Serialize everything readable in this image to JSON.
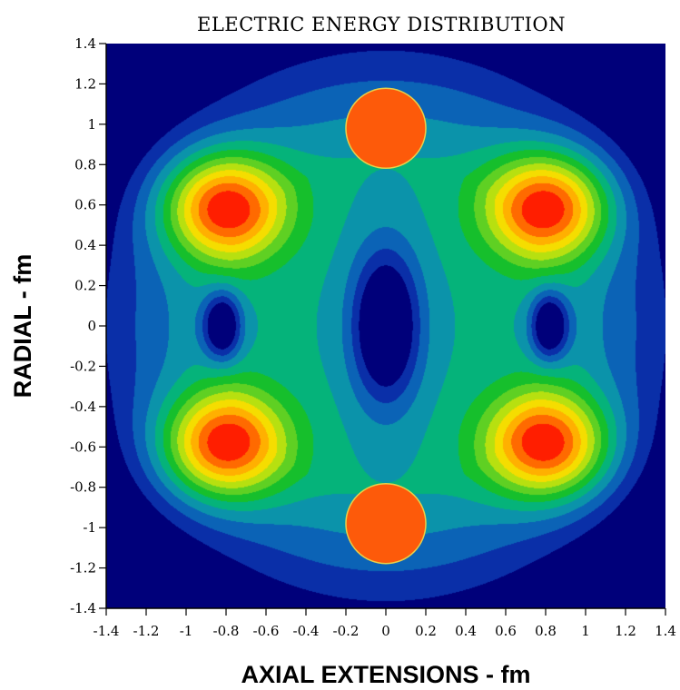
{
  "chart_data": {
    "type": "heatmap",
    "title": "ELECTRIC ENERGY DISTRIBUTION",
    "xlabel": "AXIAL EXTENSIONS - fm",
    "ylabel": "RADIAL - fm",
    "xlim": [
      -1.4,
      1.4
    ],
    "ylim": [
      -1.4,
      1.4
    ],
    "x_ticks": [
      -1.4,
      -1.2,
      -1,
      -0.8,
      -0.6,
      -0.4,
      -0.2,
      0,
      0.2,
      0.4,
      0.6,
      0.8,
      1,
      1.2,
      1.4
    ],
    "x_tick_labels": [
      "-1.4",
      "-1.2",
      "-1",
      "-0.8",
      "-0.6",
      "-0.4",
      "-0.2",
      "0",
      "0.2",
      "0.4",
      "0.6",
      "0.8",
      "1",
      "1.2",
      "1.4"
    ],
    "y_ticks": [
      1.4,
      1.2,
      1,
      0.8,
      0.6,
      0.4,
      0.2,
      0,
      -0.2,
      -0.4,
      -0.6,
      -0.8,
      -1,
      -1.2,
      -1.4
    ],
    "y_tick_labels": [
      "1.4",
      "1.2",
      "1",
      "0.8",
      "0.6",
      "0.4",
      "0.2",
      "0",
      "-0.2",
      "-0.4",
      "-0.6",
      "-0.8",
      "-1",
      "-1.2",
      "-1.4"
    ],
    "grid": false,
    "legend": "none",
    "color_levels": [
      "#00007a",
      "#0a2fa8",
      "#0b63b6",
      "#0b93aa",
      "#05b37a",
      "#16bf2c",
      "#5fd023",
      "#b7e010",
      "#f5dd00",
      "#ffb000",
      "#ff6a00",
      "#ff1e00"
    ],
    "charges": [
      {
        "x": 0,
        "y": 0.98,
        "radius": 0.2,
        "color": "#fd5a0a"
      },
      {
        "x": 0,
        "y": -0.98,
        "radius": 0.2,
        "color": "#fd5a0a"
      }
    ],
    "energy_peaks": [
      {
        "x": -0.81,
        "y": 0.59,
        "kind": "maximum"
      },
      {
        "x": 0.81,
        "y": 0.59,
        "kind": "maximum"
      },
      {
        "x": -0.81,
        "y": -0.59,
        "kind": "maximum"
      },
      {
        "x": 0.81,
        "y": -0.59,
        "kind": "maximum"
      },
      {
        "x": -0.82,
        "y": 0,
        "kind": "minimum"
      },
      {
        "x": 0,
        "y": 0,
        "kind": "minimum"
      },
      {
        "x": 0.82,
        "y": 0,
        "kind": "minimum"
      }
    ]
  }
}
